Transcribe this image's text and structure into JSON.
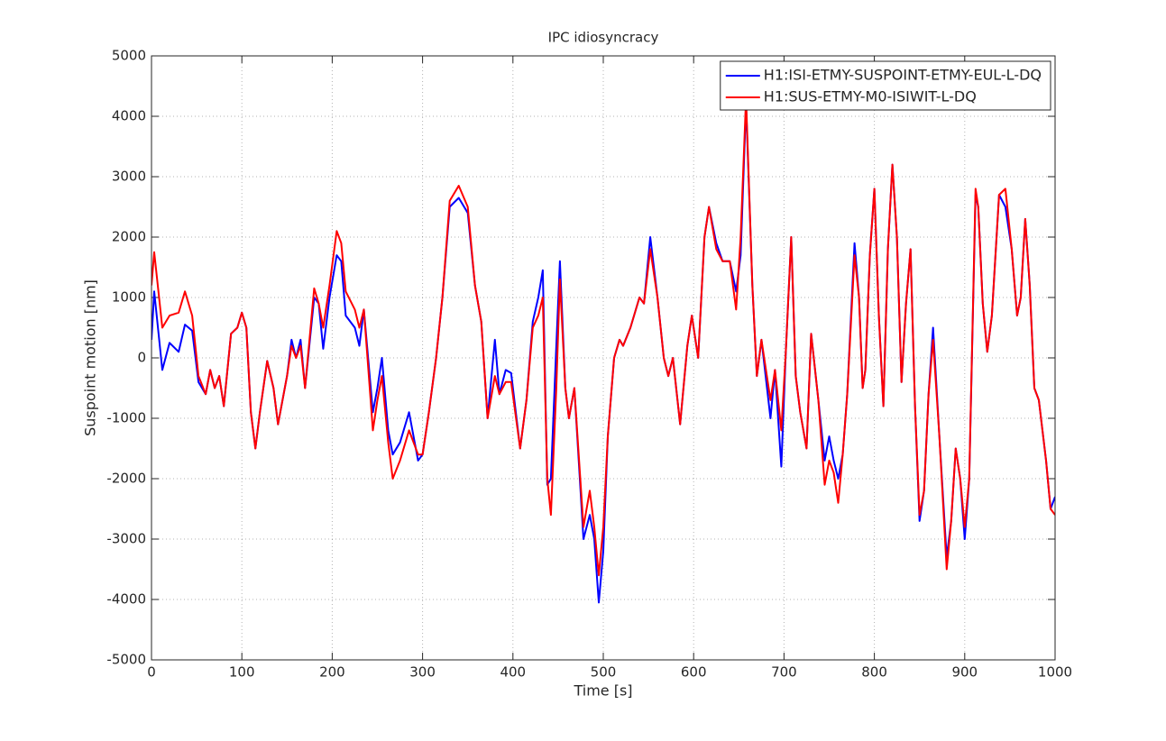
{
  "chart_data": {
    "type": "line",
    "title": "IPC idiosyncracy",
    "xlabel": "Time [s]",
    "ylabel": "Suspoint motion [nm]",
    "xlim": [
      0,
      1000
    ],
    "ylim": [
      -5000,
      5000
    ],
    "xticks": [
      0,
      100,
      200,
      300,
      400,
      500,
      600,
      700,
      800,
      900,
      1000
    ],
    "yticks": [
      -5000,
      -4000,
      -3000,
      -2000,
      -1000,
      0,
      1000,
      2000,
      3000,
      4000,
      5000
    ],
    "grid": true,
    "legend": "upper right",
    "x": [
      0,
      3,
      12,
      20,
      30,
      37,
      45,
      52,
      60,
      65,
      70,
      75,
      80,
      88,
      95,
      100,
      105,
      110,
      115,
      120,
      128,
      135,
      140,
      150,
      155,
      160,
      165,
      170,
      180,
      185,
      190,
      197,
      205,
      210,
      215,
      225,
      230,
      235,
      245,
      250,
      255,
      262,
      267,
      275,
      285,
      295,
      300,
      307,
      315,
      322,
      330,
      340,
      350,
      358,
      365,
      372,
      380,
      385,
      392,
      398,
      408,
      415,
      422,
      428,
      433,
      438,
      442,
      448,
      452,
      458,
      462,
      468,
      478,
      485,
      490,
      495,
      500,
      505,
      512,
      518,
      522,
      530,
      540,
      545,
      552,
      560,
      567,
      572,
      577,
      585,
      593,
      598,
      605,
      612,
      617,
      625,
      632,
      640,
      647,
      652,
      658,
      665,
      670,
      675,
      685,
      690,
      697,
      702,
      708,
      713,
      718,
      725,
      730,
      738,
      745,
      750,
      755,
      760,
      765,
      770,
      778,
      783,
      787,
      790,
      795,
      800,
      805,
      810,
      815,
      820,
      825,
      830,
      835,
      840,
      845,
      850,
      855,
      860,
      865,
      872,
      880,
      885,
      890,
      895,
      900,
      905,
      912,
      915,
      920,
      925,
      930,
      938,
      945,
      952,
      958,
      962,
      967,
      972,
      977,
      982,
      990,
      995,
      1000
    ],
    "series": [
      {
        "name": "H1:ISI-ETMY-SUSPOINT-ETMY-EUL-L-DQ",
        "color": "#0000ff",
        "values": [
          300,
          1100,
          -200,
          250,
          100,
          550,
          450,
          -400,
          -600,
          -200,
          -500,
          -300,
          -800,
          400,
          500,
          750,
          500,
          -900,
          -1500,
          -900,
          -50,
          -500,
          -1100,
          -300,
          300,
          0,
          300,
          -500,
          1000,
          900,
          150,
          1000,
          1700,
          1600,
          700,
          500,
          200,
          800,
          -900,
          -500,
          0,
          -1200,
          -1600,
          -1400,
          -900,
          -1700,
          -1600,
          -900,
          0,
          1000,
          2500,
          2650,
          2400,
          1200,
          600,
          -1000,
          300,
          -600,
          -200,
          -250,
          -1500,
          -700,
          600,
          1000,
          1450,
          -2100,
          -2000,
          200,
          1600,
          -500,
          -1000,
          -500,
          -3000,
          -2600,
          -3000,
          -4050,
          -3200,
          -1300,
          0,
          300,
          200,
          500,
          1000,
          900,
          2000,
          1000,
          0,
          -300,
          0,
          -1100,
          200,
          700,
          0,
          2000,
          2500,
          1900,
          1600,
          1600,
          1100,
          1700,
          4200,
          1200,
          -300,
          300,
          -1000,
          -200,
          -1800,
          100,
          2000,
          -300,
          -900,
          -1500,
          400,
          -700,
          -1700,
          -1300,
          -1700,
          -2000,
          -1600,
          -600,
          1900,
          1000,
          -500,
          -200,
          1700,
          2800,
          700,
          -800,
          1800,
          3200,
          2000,
          -400,
          900,
          1800,
          -800,
          -2700,
          -2200,
          -600,
          500,
          -1300,
          -3300,
          -2700,
          -1500,
          -2000,
          -3000,
          -2000,
          2700,
          2500,
          900,
          100,
          700,
          2700,
          2500,
          1800,
          700,
          1000,
          2300,
          1200,
          -500,
          -700,
          -1700,
          -2500,
          -2300
        ]
      },
      {
        "name": "H1:SUS-ETMY-M0-ISIWIT-L-DQ",
        "color": "#ff0000",
        "values": [
          1200,
          1750,
          500,
          700,
          750,
          1100,
          700,
          -300,
          -600,
          -200,
          -500,
          -300,
          -800,
          400,
          500,
          750,
          500,
          -900,
          -1500,
          -900,
          -50,
          -500,
          -1100,
          -300,
          200,
          0,
          200,
          -500,
          1150,
          900,
          500,
          1200,
          2100,
          1900,
          1100,
          800,
          500,
          800,
          -1200,
          -700,
          -300,
          -1400,
          -2000,
          -1700,
          -1200,
          -1600,
          -1600,
          -900,
          0,
          1000,
          2600,
          2850,
          2500,
          1200,
          600,
          -1000,
          -300,
          -600,
          -400,
          -400,
          -1500,
          -700,
          500,
          700,
          1000,
          -2000,
          -2600,
          -500,
          1300,
          -500,
          -1000,
          -500,
          -2800,
          -2200,
          -2800,
          -3600,
          -2800,
          -1300,
          0,
          300,
          200,
          500,
          1000,
          900,
          1800,
          1000,
          0,
          -300,
          0,
          -1100,
          200,
          700,
          0,
          2000,
          2500,
          1800,
          1600,
          1600,
          800,
          2000,
          4300,
          1200,
          -300,
          300,
          -700,
          -200,
          -1200,
          100,
          2000,
          -300,
          -900,
          -1500,
          400,
          -700,
          -2100,
          -1700,
          -1900,
          -2400,
          -1600,
          -600,
          1700,
          1000,
          -500,
          -200,
          1700,
          2800,
          700,
          -800,
          1800,
          3200,
          2000,
          -400,
          900,
          1800,
          -800,
          -2600,
          -2200,
          -600,
          300,
          -1300,
          -3500,
          -2700,
          -1500,
          -2000,
          -2800,
          -2000,
          2800,
          2500,
          900,
          100,
          700,
          2700,
          2800,
          1800,
          700,
          1000,
          2300,
          1200,
          -500,
          -700,
          -1700,
          -2500,
          -2600
        ]
      }
    ]
  }
}
